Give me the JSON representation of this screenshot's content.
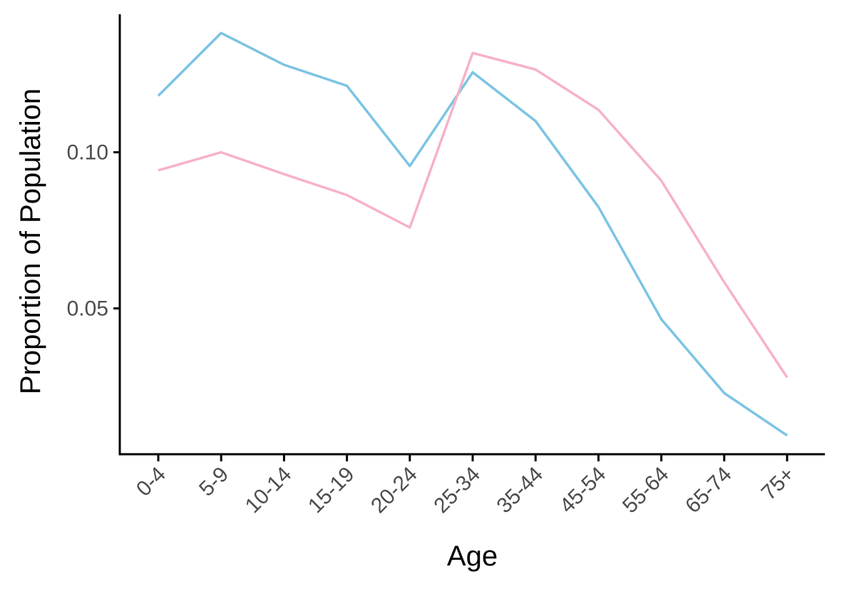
{
  "chart_data": {
    "type": "line",
    "title": "",
    "xlabel": "Age",
    "ylabel": "Proportion of Population",
    "categories": [
      "0-4",
      "5-9",
      "10-14",
      "15-19",
      "20-24",
      "25-34",
      "35-44",
      "45-54",
      "55-64",
      "65-74",
      "75+"
    ],
    "series": [
      {
        "color": "#7bc4e3",
        "values": [
          0.1181,
          0.1382,
          0.128,
          0.1213,
          0.0956,
          0.1256,
          0.11,
          0.0825,
          0.0465,
          0.0229,
          0.0093
        ]
      },
      {
        "color": "#f7b2c8",
        "values": [
          0.0942,
          0.1,
          0.093,
          0.0863,
          0.0759,
          0.1318,
          0.1265,
          0.1136,
          0.0909,
          0.0584,
          0.0279
        ]
      }
    ],
    "ylim": [
      0.0033,
      0.1442
    ],
    "yticks": [
      0.05,
      0.1
    ],
    "ytick_labels": [
      "0.05",
      "0.10"
    ],
    "grid": false,
    "legend": "none"
  }
}
